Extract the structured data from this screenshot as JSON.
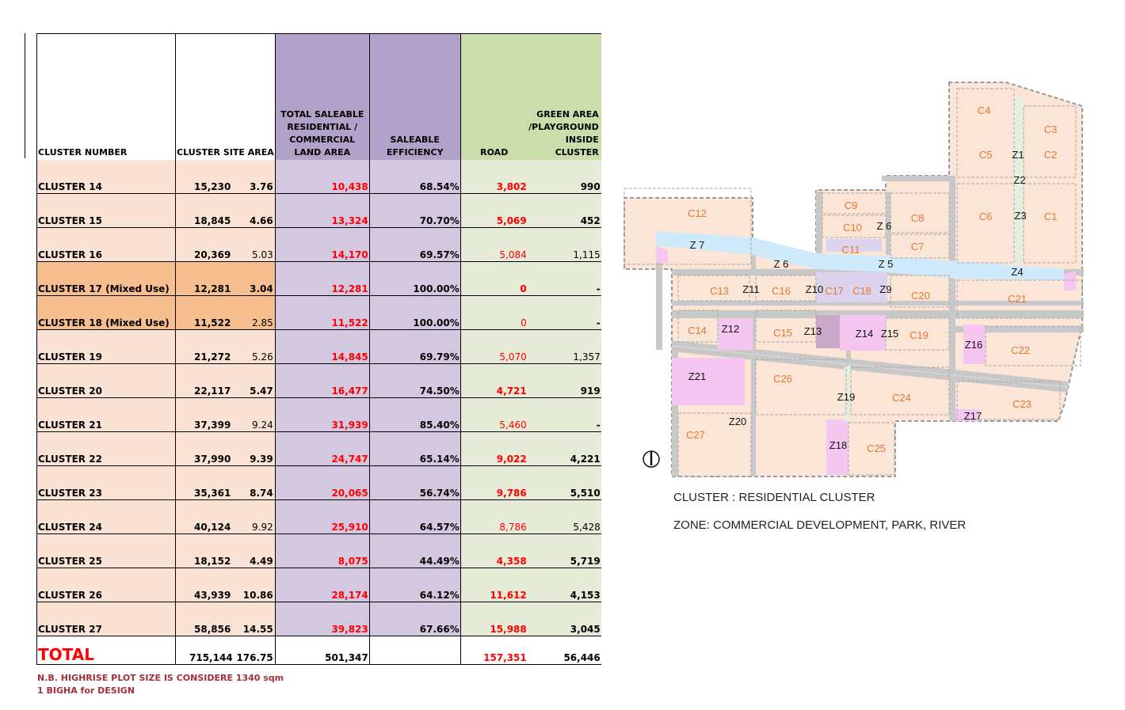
{
  "table": {
    "headers": {
      "cluster_number": "CLUSTER  NUMBER",
      "cluster_site_area": "CLUSTER SITE AREA",
      "total_saleable": "TOTAL SALEABLE RESIDENTIAL / COMMERCIAL  LAND AREA",
      "saleable_efficiency": "SALEABLE EFFICIENCY",
      "road": "ROAD",
      "green_area": "GREEN AREA /PLAYGROUND INSIDE CLUSTER"
    },
    "rows": [
      {
        "name": "CLUSTER 14",
        "site_sqm": "15,230",
        "site_bigha": "3.76",
        "saleable": "10,438",
        "efficiency": "68.54%",
        "road": "3,802",
        "green": "990",
        "mixed": false
      },
      {
        "name": "CLUSTER 15",
        "site_sqm": "18,845",
        "site_bigha": "4.66",
        "saleable": "13,324",
        "efficiency": "70.70%",
        "road": "5,069",
        "green": "452",
        "mixed": false
      },
      {
        "name": "CLUSTER 16",
        "site_sqm": "20,369",
        "site_bigha": "5.03",
        "saleable": "14,170",
        "efficiency": "69.57%",
        "road": "5,084",
        "green": "1,115",
        "mixed": false
      },
      {
        "name": "CLUSTER 17 (Mixed Use)",
        "site_sqm": "12,281",
        "site_bigha": "3.04",
        "saleable": "12,281",
        "efficiency": "100.00%",
        "road": "0",
        "green": "-",
        "mixed": true
      },
      {
        "name": "CLUSTER 18 (Mixed Use)",
        "site_sqm": "11,522",
        "site_bigha": "2.85",
        "saleable": "11,522",
        "efficiency": "100.00%",
        "road": "0",
        "green": "-",
        "mixed": true
      },
      {
        "name": "CLUSTER 19",
        "site_sqm": "21,272",
        "site_bigha": "5.26",
        "saleable": "14,845",
        "efficiency": "69.79%",
        "road": "5,070",
        "green": "1,357",
        "mixed": false
      },
      {
        "name": "CLUSTER 20",
        "site_sqm": "22,117",
        "site_bigha": "5.47",
        "saleable": "16,477",
        "efficiency": "74.50%",
        "road": "4,721",
        "green": "919",
        "mixed": false
      },
      {
        "name": "CLUSTER 21",
        "site_sqm": "37,399",
        "site_bigha": "9.24",
        "saleable": "31,939",
        "efficiency": "85.40%",
        "road": "5,460",
        "green": "-",
        "mixed": false
      },
      {
        "name": "CLUSTER 22",
        "site_sqm": "37,990",
        "site_bigha": "9.39",
        "saleable": "24,747",
        "efficiency": "65.14%",
        "road": "9,022",
        "green": "4,221",
        "mixed": false
      },
      {
        "name": "CLUSTER 23",
        "site_sqm": "35,361",
        "site_bigha": "8.74",
        "saleable": "20,065",
        "efficiency": "56.74%",
        "road": "9,786",
        "green": "5,510",
        "mixed": false
      },
      {
        "name": "CLUSTER 24",
        "site_sqm": "40,124",
        "site_bigha": "9.92",
        "saleable": "25,910",
        "efficiency": "64.57%",
        "road": "8,786",
        "green": "5,428",
        "mixed": false
      },
      {
        "name": "CLUSTER 25",
        "site_sqm": "18,152",
        "site_bigha": "4.49",
        "saleable": "8,075",
        "efficiency": "44.49%",
        "road": "4,358",
        "green": "5,719",
        "mixed": false
      },
      {
        "name": "CLUSTER 26",
        "site_sqm": "43,939",
        "site_bigha": "10.86",
        "saleable": "28,174",
        "efficiency": "64.12%",
        "road": "11,612",
        "green": "4,153",
        "mixed": false
      },
      {
        "name": "CLUSTER 27",
        "site_sqm": "58,856",
        "site_bigha": "14.55",
        "saleable": "39,823",
        "efficiency": "67.66%",
        "road": "15,988",
        "green": "3,045",
        "mixed": false
      }
    ],
    "total": {
      "label": "TOTAL",
      "site_sqm": "715,144",
      "site_bigha": "176.75",
      "saleable": "501,347",
      "efficiency": "",
      "road": "157,351",
      "green": "56,446"
    }
  },
  "note": "N.B. HIGHRISE PLOT SIZE IS CONSIDERE 1340 sqm 1 BIGHA for DESIGN",
  "map": {
    "legend_cluster": "CLUSTER : RESIDENTIAL CLUSTER",
    "legend_zone": "ZONE: COMMERCIAL DEVELOPMENT, PARK, RIVER",
    "cluster_labels": [
      "C1",
      "C2",
      "C3",
      "C4",
      "C5",
      "C6",
      "C7",
      "C8",
      "C9",
      "C10",
      "C11",
      "C12",
      "C13",
      "C14",
      "C15",
      "C16",
      "C17",
      "C18",
      "C19",
      "C20",
      "C21",
      "C22",
      "C23",
      "C24",
      "C25",
      "C26",
      "C27"
    ],
    "zone_labels": [
      "Z1",
      "Z2",
      "Z3",
      "Z4",
      "Z 5",
      "Z 6",
      "Z 6",
      "Z 7",
      "Z9",
      "Z10",
      "Z11",
      "Z12",
      "Z13",
      "Z14",
      "Z15",
      "Z16",
      "Z17",
      "Z18",
      "Z19",
      "Z20",
      "Z21"
    ],
    "north_symbol": "north-arrow-icon",
    "colors": {
      "cluster_fill": "#fbe5d6",
      "zone_commercial": "#f4c6f0",
      "river": "#cfeafa",
      "mixed": "#dcd3ee",
      "z13": "#c9a8c8",
      "road": "#c8c8c8",
      "cluster_text": "#e8772e",
      "zone_text": "#111111"
    }
  }
}
